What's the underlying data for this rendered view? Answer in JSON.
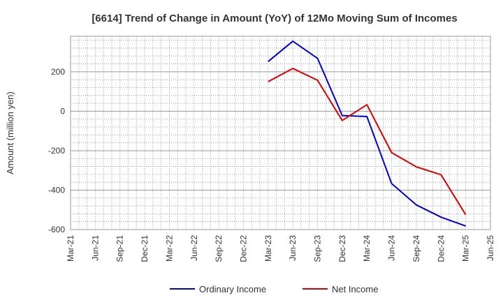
{
  "chart_data": {
    "type": "line",
    "title": "[6614]  Trend of Change in Amount (YoY) of 12Mo Moving Sum of Incomes",
    "xlabel": "",
    "ylabel": "Amount (million yen)",
    "categories": [
      "Mar-21",
      "Jun-21",
      "Sep-21",
      "Dec-21",
      "Mar-22",
      "Jun-22",
      "Sep-22",
      "Dec-22",
      "Mar-23",
      "Jun-23",
      "Sep-23",
      "Dec-23",
      "Mar-24",
      "Jun-24",
      "Sep-24",
      "Dec-24",
      "Mar-25",
      "Jun-25"
    ],
    "ylim": [
      -600,
      380
    ],
    "yticks": [
      -600,
      -400,
      -200,
      0,
      200
    ],
    "grid": true,
    "legend_position": "bottom",
    "series": [
      {
        "name": "Ordinary Income",
        "color": "#0000dd",
        "values": [
          null,
          null,
          null,
          null,
          null,
          null,
          null,
          null,
          252,
          355,
          268,
          -22,
          -27,
          -367,
          -475,
          -537,
          -582,
          null
        ]
      },
      {
        "name": "Net Income",
        "color": "#dd0000",
        "values": [
          null,
          null,
          null,
          null,
          null,
          null,
          null,
          null,
          150,
          217,
          157,
          -47,
          33,
          -210,
          -282,
          -322,
          -525,
          null
        ]
      }
    ]
  }
}
